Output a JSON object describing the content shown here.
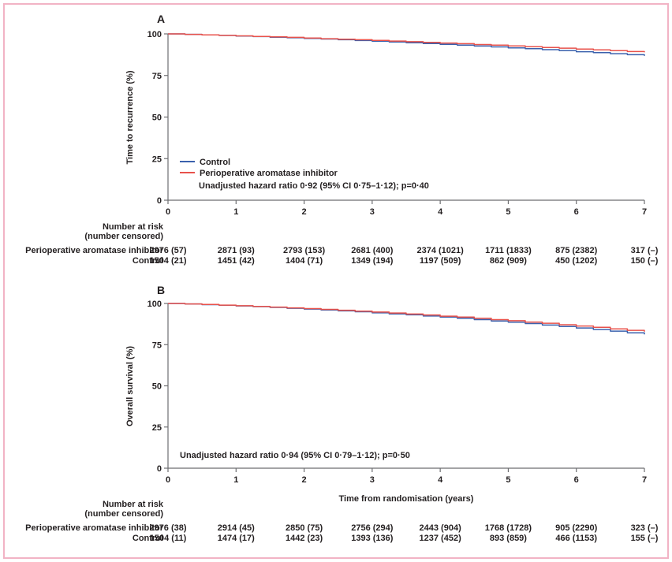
{
  "figure": {
    "border_color": "#f2b3c5",
    "background": "#ffffff",
    "text_color": "#231f20",
    "axis_color": "#6d6e71"
  },
  "xlabel": "Time from randomisation (years)",
  "chart_data": [
    {
      "type": "line",
      "panel": "A",
      "title": "A",
      "ylabel": "Time to recurrence (%)",
      "xlabel": "",
      "xlim": [
        0,
        7
      ],
      "ylim": [
        0,
        100
      ],
      "xticks": [
        0,
        1,
        2,
        3,
        4,
        5,
        6,
        7
      ],
      "yticks": [
        0,
        25,
        50,
        75,
        100
      ],
      "grid": false,
      "legend_position": "lower-left-inside",
      "annotation": "Unadjusted hazard ratio 0·92 (95% CI 0·75–1·12); p=0·40",
      "x": [
        0,
        0.25,
        0.5,
        0.75,
        1,
        1.25,
        1.5,
        1.75,
        2,
        2.25,
        2.5,
        2.75,
        3,
        3.25,
        3.5,
        3.75,
        4,
        4.25,
        4.5,
        4.75,
        5,
        5.25,
        5.5,
        5.75,
        6,
        6.25,
        6.5,
        6.75,
        7
      ],
      "series": [
        {
          "name": "Control",
          "color": "#3a61ad",
          "values": [
            100,
            99.7,
            99.4,
            99.1,
            98.7,
            98.4,
            98.0,
            97.7,
            97.3,
            96.9,
            96.5,
            96.0,
            95.6,
            95.1,
            94.7,
            94.2,
            93.7,
            93.2,
            92.7,
            92.2,
            91.6,
            91.1,
            90.5,
            89.9,
            89.3,
            88.7,
            88.1,
            87.5,
            86.8
          ]
        },
        {
          "name": "Perioperative aromatase inhibitor",
          "color": "#e8524b",
          "values": [
            100,
            99.7,
            99.4,
            99.1,
            98.8,
            98.5,
            98.2,
            97.9,
            97.5,
            97.1,
            96.8,
            96.5,
            96.1,
            95.7,
            95.3,
            94.9,
            94.5,
            94.1,
            93.6,
            93.2,
            92.8,
            92.3,
            91.8,
            91.4,
            90.9,
            90.4,
            89.9,
            89.4,
            88.9
          ]
        }
      ],
      "number_at_risk": {
        "header1": "Number at risk",
        "header2": "(number censored)",
        "times": [
          0,
          1,
          2,
          3,
          4,
          5,
          6,
          7
        ],
        "rows": [
          {
            "label": "Perioperative aromatase inhibitor",
            "values": [
              "2976 (57)",
              "2871 (93)",
              "2793 (153)",
              "2681 (400)",
              "2374 (1021)",
              "1711 (1833)",
              "875 (2382)",
              "317 (–)"
            ]
          },
          {
            "label": "Control",
            "values": [
              "1504 (21)",
              "1451 (42)",
              "1404 (71)",
              "1349 (194)",
              "1197 (509)",
              "862 (909)",
              "450 (1202)",
              "150 (–)"
            ]
          }
        ]
      }
    },
    {
      "type": "line",
      "panel": "B",
      "title": "B",
      "ylabel": "Overall survival (%)",
      "xlabel": "Time from randomisation (years)",
      "xlim": [
        0,
        7
      ],
      "ylim": [
        0,
        100
      ],
      "xticks": [
        0,
        1,
        2,
        3,
        4,
        5,
        6,
        7
      ],
      "yticks": [
        0,
        25,
        50,
        75,
        100
      ],
      "grid": false,
      "annotation": "Unadjusted hazard ratio 0·94 (95% CI 0·79–1·12); p=0·50",
      "x": [
        0,
        0.25,
        0.5,
        0.75,
        1,
        1.25,
        1.5,
        1.75,
        2,
        2.25,
        2.5,
        2.75,
        3,
        3.25,
        3.5,
        3.75,
        4,
        4.25,
        4.5,
        4.75,
        5,
        5.25,
        5.5,
        5.75,
        6,
        6.25,
        6.5,
        6.75,
        7
      ],
      "series": [
        {
          "name": "Control",
          "color": "#3a61ad",
          "values": [
            100,
            99.7,
            99.3,
            98.9,
            98.5,
            98.1,
            97.6,
            97.1,
            96.6,
            96.1,
            95.5,
            95.0,
            94.3,
            93.7,
            93.1,
            92.4,
            91.7,
            91.0,
            90.2,
            89.4,
            88.6,
            87.8,
            86.9,
            86.0,
            85.1,
            84.2,
            83.2,
            82.2,
            81.2
          ]
        },
        {
          "name": "Perioperative aromatase inhibitor",
          "color": "#e8524b",
          "values": [
            100,
            99.7,
            99.4,
            99.0,
            98.6,
            98.2,
            97.8,
            97.3,
            96.9,
            96.4,
            95.9,
            95.3,
            94.8,
            94.2,
            93.6,
            93.0,
            92.3,
            91.7,
            91.0,
            90.2,
            89.5,
            88.7,
            88.0,
            87.1,
            86.3,
            85.5,
            84.6,
            83.7,
            82.8
          ]
        }
      ],
      "number_at_risk": {
        "header1": "Number at risk",
        "header2": "(number censored)",
        "times": [
          0,
          1,
          2,
          3,
          4,
          5,
          6,
          7
        ],
        "rows": [
          {
            "label": "Perioperative aromatase inhibitor",
            "values": [
              "2976 (38)",
              "2914 (45)",
              "2850 (75)",
              "2756 (294)",
              "2443 (904)",
              "1768 (1728)",
              "905 (2290)",
              "323 (–)"
            ]
          },
          {
            "label": "Control",
            "values": [
              "1504 (11)",
              "1474 (17)",
              "1442 (23)",
              "1393 (136)",
              "1237 (452)",
              "893 (859)",
              "466 (1153)",
              "155 (–)"
            ]
          }
        ]
      }
    }
  ]
}
